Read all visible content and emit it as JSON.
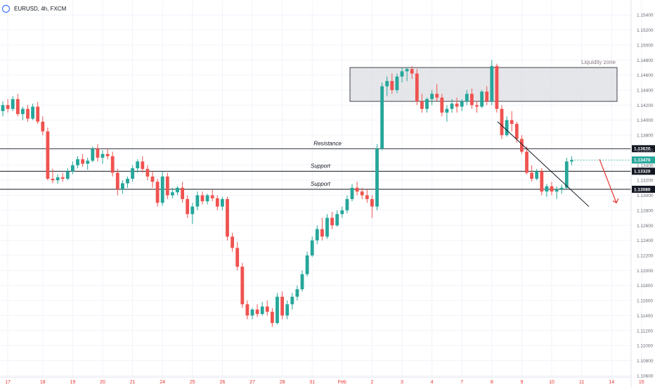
{
  "header": {
    "symbol": "EURUSD, 4h, FXCM"
  },
  "chart_data": {
    "type": "candlestick",
    "symbol": "EURUSD",
    "timeframe": "4h",
    "source": "FXCM",
    "ylim": [
      1.1058,
      1.1558
    ],
    "y_ticks": [
      "1.15400",
      "1.15200",
      "1.15000",
      "1.14800",
      "1.14600",
      "1.14400",
      "1.14200",
      "1.14000",
      "1.13800",
      "1.13600",
      "1.13400",
      "1.13200",
      "1.13000",
      "1.12800",
      "1.12600",
      "1.12400",
      "1.12200",
      "1.12000",
      "1.11800",
      "1.11600",
      "1.11400",
      "1.11200",
      "1.11000",
      "1.10800",
      "1.10600"
    ],
    "x_ticks": [
      {
        "label": "17",
        "index": 1
      },
      {
        "label": "18",
        "index": 8
      },
      {
        "label": "19",
        "index": 14
      },
      {
        "label": "20",
        "index": 20
      },
      {
        "label": "21",
        "index": 26
      },
      {
        "label": "24",
        "index": 32
      },
      {
        "label": "25",
        "index": 38
      },
      {
        "label": "26",
        "index": 44
      },
      {
        "label": "27",
        "index": 50
      },
      {
        "label": "28",
        "index": 56
      },
      {
        "label": "31",
        "index": 62
      },
      {
        "label": "Feb",
        "index": 68
      },
      {
        "label": "2",
        "index": 74
      },
      {
        "label": "3",
        "index": 80
      },
      {
        "label": "4",
        "index": 86
      },
      {
        "label": "7",
        "index": 92
      },
      {
        "label": "8",
        "index": 98
      },
      {
        "label": "9",
        "index": 104
      },
      {
        "label": "10",
        "index": 110
      },
      {
        "label": "11",
        "index": 116
      },
      {
        "label": "14",
        "index": 122
      },
      {
        "label": "15",
        "index": 128
      },
      {
        "label": "16",
        "index": 134
      }
    ],
    "candles": [
      [
        1.1412,
        1.1425,
        1.1405,
        1.142
      ],
      [
        1.142,
        1.1428,
        1.141,
        1.1415
      ],
      [
        1.1415,
        1.1432,
        1.1412,
        1.1428
      ],
      [
        1.1428,
        1.1435,
        1.1405,
        1.1408
      ],
      [
        1.1408,
        1.1418,
        1.14,
        1.1415
      ],
      [
        1.1415,
        1.142,
        1.1398,
        1.1402
      ],
      [
        1.1402,
        1.1422,
        1.14,
        1.1418
      ],
      [
        1.1418,
        1.1424,
        1.1395,
        1.1398
      ],
      [
        1.1398,
        1.1405,
        1.138,
        1.1385
      ],
      [
        1.1385,
        1.139,
        1.132,
        1.1322
      ],
      [
        1.1322,
        1.1335,
        1.1316,
        1.132
      ],
      [
        1.132,
        1.1328,
        1.1315,
        1.1324
      ],
      [
        1.1324,
        1.133,
        1.1318,
        1.1322
      ],
      [
        1.1322,
        1.1336,
        1.132,
        1.1332
      ],
      [
        1.1332,
        1.1345,
        1.1328,
        1.134
      ],
      [
        1.134,
        1.1352,
        1.1336,
        1.1348
      ],
      [
        1.1348,
        1.1355,
        1.1338,
        1.1342
      ],
      [
        1.1342,
        1.135,
        1.1334,
        1.1346
      ],
      [
        1.1346,
        1.1365,
        1.1344,
        1.1362
      ],
      [
        1.1362,
        1.1368,
        1.1345,
        1.135
      ],
      [
        1.135,
        1.136,
        1.1342,
        1.1355
      ],
      [
        1.1355,
        1.1362,
        1.1348,
        1.1352
      ],
      [
        1.1352,
        1.1358,
        1.1325,
        1.133
      ],
      [
        1.133,
        1.1335,
        1.13,
        1.1308
      ],
      [
        1.1308,
        1.132,
        1.1302,
        1.1316
      ],
      [
        1.1316,
        1.1325,
        1.131,
        1.1322
      ],
      [
        1.1322,
        1.134,
        1.1318,
        1.1336
      ],
      [
        1.1336,
        1.1348,
        1.133,
        1.1345
      ],
      [
        1.1345,
        1.1352,
        1.133,
        1.1335
      ],
      [
        1.1335,
        1.134,
        1.132,
        1.1325
      ],
      [
        1.1325,
        1.1332,
        1.131,
        1.1318
      ],
      [
        1.1318,
        1.1322,
        1.1285,
        1.129
      ],
      [
        1.129,
        1.1332,
        1.1286,
        1.1325
      ],
      [
        1.1325,
        1.133,
        1.1295,
        1.13
      ],
      [
        1.13,
        1.131,
        1.1296,
        1.1304
      ],
      [
        1.1304,
        1.1312,
        1.13,
        1.131
      ],
      [
        1.131,
        1.1318,
        1.129,
        1.1295
      ],
      [
        1.1295,
        1.13,
        1.127,
        1.1275
      ],
      [
        1.1275,
        1.129,
        1.1262,
        1.1285
      ],
      [
        1.1285,
        1.1305,
        1.128,
        1.13
      ],
      [
        1.13,
        1.1305,
        1.1288,
        1.1292
      ],
      [
        1.1292,
        1.1302,
        1.1288,
        1.13
      ],
      [
        1.13,
        1.1308,
        1.1292,
        1.1296
      ],
      [
        1.1296,
        1.13,
        1.128,
        1.1285
      ],
      [
        1.1285,
        1.1298,
        1.128,
        1.1295
      ],
      [
        1.1295,
        1.1298,
        1.124,
        1.1245
      ],
      [
        1.1245,
        1.125,
        1.1225,
        1.123
      ],
      [
        1.123,
        1.1238,
        1.12,
        1.1205
      ],
      [
        1.1205,
        1.121,
        1.115,
        1.1155
      ],
      [
        1.1155,
        1.116,
        1.1135,
        1.114
      ],
      [
        1.114,
        1.115,
        1.1135,
        1.1148
      ],
      [
        1.1148,
        1.1155,
        1.1138,
        1.1142
      ],
      [
        1.1142,
        1.1158,
        1.114,
        1.1152
      ],
      [
        1.1152,
        1.116,
        1.114,
        1.1145
      ],
      [
        1.1145,
        1.115,
        1.1125,
        1.113
      ],
      [
        1.113,
        1.117,
        1.1128,
        1.1165
      ],
      [
        1.1165,
        1.1172,
        1.1135,
        1.114
      ],
      [
        1.114,
        1.116,
        1.1135,
        1.1155
      ],
      [
        1.1155,
        1.117,
        1.1148,
        1.1165
      ],
      [
        1.1165,
        1.118,
        1.116,
        1.1175
      ],
      [
        1.1175,
        1.12,
        1.1172,
        1.1195
      ],
      [
        1.1195,
        1.1225,
        1.1192,
        1.122
      ],
      [
        1.122,
        1.1245,
        1.1218,
        1.124
      ],
      [
        1.124,
        1.126,
        1.1235,
        1.1255
      ],
      [
        1.1255,
        1.127,
        1.124,
        1.1245
      ],
      [
        1.1245,
        1.1275,
        1.1242,
        1.127
      ],
      [
        1.127,
        1.1278,
        1.1255,
        1.126
      ],
      [
        1.126,
        1.128,
        1.1258,
        1.1275
      ],
      [
        1.1275,
        1.1285,
        1.127,
        1.128
      ],
      [
        1.128,
        1.13,
        1.1276,
        1.1295
      ],
      [
        1.1295,
        1.1315,
        1.1292,
        1.131
      ],
      [
        1.131,
        1.1318,
        1.13,
        1.1305
      ],
      [
        1.1305,
        1.131,
        1.1295,
        1.13
      ],
      [
        1.13,
        1.1308,
        1.129,
        1.1295
      ],
      [
        1.1295,
        1.13,
        1.127,
        1.1285
      ],
      [
        1.1285,
        1.1368,
        1.128,
        1.1362
      ],
      [
        1.1362,
        1.145,
        1.136,
        1.1445
      ],
      [
        1.1445,
        1.1458,
        1.1432,
        1.1452
      ],
      [
        1.1452,
        1.1462,
        1.1435,
        1.144
      ],
      [
        1.144,
        1.1462,
        1.1436,
        1.1458
      ],
      [
        1.1458,
        1.147,
        1.145,
        1.1465
      ],
      [
        1.1465,
        1.147,
        1.1452,
        1.1468
      ],
      [
        1.1468,
        1.1472,
        1.1455,
        1.1462
      ],
      [
        1.1462,
        1.1468,
        1.142,
        1.1425
      ],
      [
        1.1425,
        1.1435,
        1.141,
        1.1415
      ],
      [
        1.1415,
        1.143,
        1.141,
        1.1428
      ],
      [
        1.1428,
        1.144,
        1.142,
        1.1435
      ],
      [
        1.1435,
        1.1448,
        1.1425,
        1.143
      ],
      [
        1.143,
        1.1435,
        1.1405,
        1.141
      ],
      [
        1.141,
        1.142,
        1.1398,
        1.1415
      ],
      [
        1.1415,
        1.1428,
        1.141,
        1.1422
      ],
      [
        1.1422,
        1.143,
        1.141,
        1.1418
      ],
      [
        1.1418,
        1.1428,
        1.1412,
        1.1425
      ],
      [
        1.1425,
        1.144,
        1.142,
        1.1435
      ],
      [
        1.1435,
        1.1442,
        1.1415,
        1.142
      ],
      [
        1.142,
        1.1425,
        1.141,
        1.1418
      ],
      [
        1.1418,
        1.144,
        1.1416,
        1.1438
      ],
      [
        1.1438,
        1.1445,
        1.142,
        1.1425
      ],
      [
        1.1425,
        1.148,
        1.142,
        1.1472
      ],
      [
        1.1472,
        1.1475,
        1.141,
        1.1415
      ],
      [
        1.1415,
        1.142,
        1.1375,
        1.138
      ],
      [
        1.138,
        1.1405,
        1.1378,
        1.14
      ],
      [
        1.14,
        1.1412,
        1.1385,
        1.1395
      ],
      [
        1.1395,
        1.1398,
        1.137,
        1.1375
      ],
      [
        1.1375,
        1.138,
        1.1355,
        1.1358
      ],
      [
        1.1358,
        1.1365,
        1.1328,
        1.133
      ],
      [
        1.133,
        1.134,
        1.1318,
        1.1322
      ],
      [
        1.1322,
        1.1335,
        1.132,
        1.1332
      ],
      [
        1.1332,
        1.1336,
        1.13,
        1.1305
      ],
      [
        1.1305,
        1.1315,
        1.1298,
        1.1312
      ],
      [
        1.1312,
        1.1318,
        1.13,
        1.1305
      ],
      [
        1.1305,
        1.1312,
        1.1295,
        1.1308
      ],
      [
        1.1308,
        1.1314,
        1.1302,
        1.131
      ],
      [
        1.131,
        1.135,
        1.1308,
        1.1345
      ],
      [
        1.1345,
        1.1352,
        1.134,
        1.1347
      ]
    ],
    "levels": [
      {
        "price": 1.1362,
        "label": "Resistance",
        "tag": "1.13620"
      },
      {
        "price": 1.1332,
        "label": "Support",
        "tag": "1.13320"
      },
      {
        "price": 1.1308,
        "label": "Support",
        "tag": "1.13080"
      }
    ],
    "current_price_tag": "1.13470",
    "current_price": 1.1347,
    "zone": {
      "label": "Liquidity zone",
      "top": 1.147,
      "bottom": 1.1425,
      "start_index": 70,
      "end_index": 120
    },
    "trendline": {
      "from": [
        1.1398,
        95
      ],
      "to": [
        1.1285,
        109
      ]
    },
    "arrow": {
      "from": [
        1.1348,
        117
      ],
      "to": [
        1.129,
        119
      ]
    },
    "colors": {
      "up": "#26a69a",
      "down": "#ef5350",
      "grid": "#f0f3fa",
      "price_tag": "#26a69a",
      "level": "#131722",
      "zone_fill": "#dadbe0",
      "arrow": "#e8322e"
    }
  }
}
